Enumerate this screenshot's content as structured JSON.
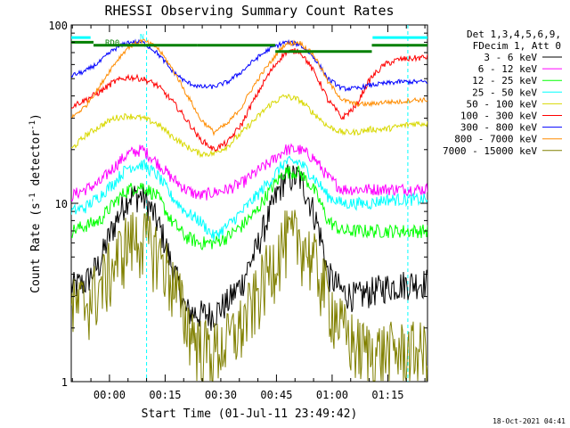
{
  "chart_data": {
    "type": "line",
    "title": "RHESSI Observing Summary Count Rates",
    "xlabel": "Start Time (01-Jul-11 23:49:42)",
    "ylabel": "Count Rate (s⁻¹ detector⁻¹)",
    "y_scale": "log",
    "ylim": [
      1,
      100
    ],
    "y_tick_labels": [
      "1",
      "10",
      "100"
    ],
    "x_tick_labels": [
      "00:00",
      "00:15",
      "00:30",
      "00:45",
      "01:00",
      "01:15"
    ],
    "x_range_minutes_from_start": [
      0,
      96
    ],
    "x_tick_minutes": [
      10.3,
      25.3,
      40.3,
      55.3,
      70.3,
      85.3
    ],
    "legend_header": [
      "Det 1,3,4,5,6,9,",
      "FDecim 1, Att 0"
    ],
    "legend_position": "right",
    "series": [
      {
        "name": "3 - 6 keV",
        "color": "#000000",
        "base": [
          3.4,
          3.6,
          4.6,
          7.5,
          11,
          11,
          8,
          4.6,
          2.5,
          2.4,
          2.4,
          2.8,
          3.6,
          5.5,
          9,
          14,
          14,
          9,
          4,
          3.2,
          3.0,
          3.2,
          3.4,
          3.5,
          3.6,
          3.6
        ],
        "band": 0.2
      },
      {
        "name": "6 - 12 keV",
        "color": "#ff00ff",
        "base": [
          11,
          12,
          13,
          16,
          19,
          20,
          17,
          14,
          12,
          11,
          11.5,
          12,
          13,
          15,
          17,
          20,
          20,
          18,
          14,
          12,
          12,
          12,
          12,
          12,
          12,
          12
        ],
        "band": 0.08
      },
      {
        "name": "12 - 25 keV",
        "color": "#00ff00",
        "base": [
          7,
          7.5,
          8,
          10,
          12,
          12.5,
          11,
          8,
          6.5,
          6,
          6,
          6.5,
          7.5,
          9,
          12,
          15,
          15,
          12,
          8,
          7,
          7,
          7,
          7,
          7,
          7,
          7
        ],
        "band": 0.09
      },
      {
        "name": "25 - 50 keV",
        "color": "#00ffff",
        "base": [
          9,
          9.5,
          11,
          13,
          16,
          16.5,
          14.5,
          11,
          9,
          8,
          6.5,
          7.5,
          9,
          11,
          13.5,
          17,
          17,
          14,
          11,
          10,
          10,
          10,
          10.5,
          10.5,
          10.5,
          10.5
        ],
        "band": 0.08
      },
      {
        "name": "50 - 100 keV",
        "color": "#d8d800",
        "base": [
          20,
          24,
          27,
          30,
          31,
          30,
          28,
          24,
          21,
          19,
          19,
          21,
          25,
          30,
          36,
          40,
          38,
          32,
          27,
          25,
          25,
          26,
          26,
          27,
          28,
          28
        ],
        "band": 0.04
      },
      {
        "name": "100 - 300 keV",
        "color": "#ff0000",
        "base": [
          35,
          38,
          42,
          48,
          51,
          50,
          46,
          38,
          30,
          23,
          20,
          22,
          28,
          40,
          55,
          70,
          72,
          55,
          38,
          30,
          35,
          50,
          60,
          64,
          65,
          66
        ],
        "band": 0.04
      },
      {
        "name": "300 - 800 keV",
        "color": "#0000ff",
        "base": [
          52,
          55,
          62,
          73,
          80,
          80,
          70,
          56,
          48,
          45,
          45,
          48,
          55,
          65,
          74,
          80,
          78,
          66,
          50,
          44,
          44,
          46,
          47,
          48,
          48,
          48
        ],
        "band": 0.03
      },
      {
        "name": "800 - 7000 keV",
        "color": "#ff8c00",
        "base": [
          30,
          35,
          45,
          60,
          75,
          82,
          75,
          58,
          42,
          30,
          25,
          28,
          35,
          48,
          62,
          78,
          80,
          68,
          48,
          38,
          36,
          36,
          37,
          37,
          38,
          38
        ],
        "band": 0.03
      },
      {
        "name": "7000 - 15000 keV",
        "color": "#808000",
        "base": [
          2.6,
          2.8,
          3.4,
          4.6,
          6.3,
          6.5,
          5.5,
          3.8,
          2.3,
          1.6,
          1.5,
          1.7,
          2.1,
          3.0,
          4.5,
          6.3,
          6.5,
          4.8,
          3.0,
          2.0,
          1.6,
          1.5,
          1.5,
          1.5,
          1.5,
          1.5
        ],
        "band": 0.45
      }
    ],
    "annotations": [
      {
        "label": "RD0",
        "color": "#008000"
      },
      {
        "label": "N",
        "color": "#00ffff"
      }
    ],
    "night_boundaries_minutes": [
      20.3,
      90.7
    ],
    "saa_bars": [
      {
        "start_min": 0,
        "end_min": 5.2,
        "y": 85
      },
      {
        "start_min": 81.2,
        "end_min": 96,
        "y": 85
      }
    ]
  },
  "timestamp": "18-Oct-2021 04:41"
}
